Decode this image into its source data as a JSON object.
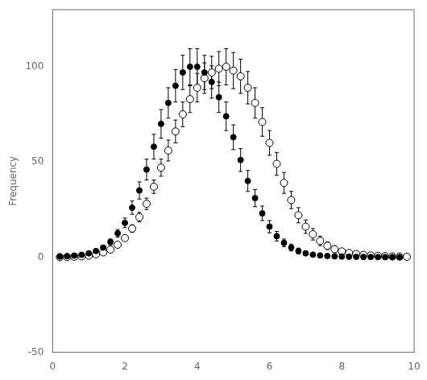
{
  "chart_data": {
    "type": "scatter",
    "ylabel": "Frequency",
    "xlim": [
      0,
      10
    ],
    "xticks": [
      0,
      2,
      4,
      6,
      8,
      10
    ],
    "ylim": [
      -50,
      130
    ],
    "yticks": [
      -50,
      0,
      50,
      100
    ],
    "grid": false,
    "series": [
      {
        "color": "#000000",
        "marker": "circle",
        "x": [
          0.2,
          0.4,
          0.6,
          0.8,
          1.0,
          1.2,
          1.4,
          1.6,
          1.8,
          2.0,
          2.2,
          2.4,
          2.6,
          2.8,
          3.0,
          3.2,
          3.4,
          3.6,
          3.8,
          4.0,
          4.2,
          4.4,
          4.6,
          4.8,
          5.0,
          5.2,
          5.4,
          5.6,
          5.8,
          6.0,
          6.2,
          6.4,
          6.6,
          6.8,
          7.0,
          7.2,
          7.4,
          7.6,
          7.8,
          8.0,
          8.2,
          8.4,
          8.6,
          8.8,
          9.0,
          9.2,
          9.4,
          9.6
        ],
        "values": [
          0.3,
          0.5,
          0.8,
          1.2,
          2.0,
          3.2,
          5.0,
          8.0,
          12.5,
          18,
          26,
          35,
          46,
          58,
          70,
          81,
          90,
          97,
          100,
          100,
          97,
          92,
          84,
          74,
          63,
          51,
          40,
          31,
          23,
          16,
          11,
          7.5,
          5.0,
          3.2,
          2.0,
          1.3,
          0.9,
          0.6,
          0.4,
          0.3,
          0.2,
          0.15,
          0.1,
          0.05,
          0.02,
          0.01,
          0.01,
          0.01
        ],
        "yerr": [
          0.3,
          0.3,
          0.4,
          0.5,
          0.6,
          0.8,
          1.0,
          1.5,
          2.0,
          2.5,
          3.5,
          4.5,
          5.5,
          6.5,
          7.5,
          8.0,
          8.5,
          9.0,
          9.5,
          9.5,
          9.0,
          8.5,
          8.0,
          7.5,
          6.5,
          6.0,
          5.5,
          4.5,
          3.8,
          3.2,
          2.5,
          2.0,
          1.8,
          1.5,
          1.2,
          1.0,
          0.8,
          0.6,
          0.5,
          0.4,
          0.3,
          0.3,
          0.2,
          0.2,
          0.1,
          0.1,
          0.1,
          0.1
        ]
      },
      {
        "color": "#000000",
        "marker": "ring",
        "x": [
          0.2,
          0.4,
          0.6,
          0.8,
          1.0,
          1.2,
          1.4,
          1.6,
          1.8,
          2.0,
          2.2,
          2.4,
          2.6,
          2.8,
          3.0,
          3.2,
          3.4,
          3.6,
          3.8,
          4.0,
          4.2,
          4.4,
          4.6,
          4.8,
          5.0,
          5.2,
          5.4,
          5.6,
          5.8,
          6.0,
          6.2,
          6.4,
          6.6,
          6.8,
          7.0,
          7.2,
          7.4,
          7.6,
          7.8,
          8.0,
          8.2,
          8.4,
          8.6,
          8.8,
          9.0,
          9.2,
          9.4,
          9.6,
          9.8
        ],
        "values": [
          0.0,
          0.0,
          0.2,
          0.4,
          0.8,
          1.5,
          2.5,
          4.0,
          6.5,
          10,
          15,
          21,
          28,
          37,
          47,
          56,
          66,
          75,
          83,
          89,
          94,
          97,
          99,
          100,
          98,
          95,
          89,
          81,
          71,
          60,
          49,
          39,
          30,
          22,
          16,
          12,
          8.5,
          6.0,
          4.2,
          3.0,
          2.2,
          1.6,
          1.2,
          0.9,
          0.7,
          0.5,
          0.4,
          0.3,
          0.2
        ],
        "yerr": [
          0.2,
          0.2,
          0.3,
          0.3,
          0.4,
          0.5,
          0.6,
          0.8,
          1.0,
          1.5,
          2.0,
          2.5,
          3.0,
          3.5,
          4.5,
          5.5,
          6.0,
          6.5,
          7.0,
          7.5,
          8.0,
          8.5,
          9.0,
          9.5,
          9.5,
          9.0,
          8.5,
          8.0,
          7.5,
          6.5,
          6.0,
          5.5,
          4.5,
          4.0,
          3.5,
          3.0,
          2.5,
          2.0,
          1.8,
          1.5,
          1.2,
          1.0,
          0.8,
          0.6,
          0.5,
          0.4,
          0.3,
          0.2,
          0.2
        ]
      }
    ]
  }
}
